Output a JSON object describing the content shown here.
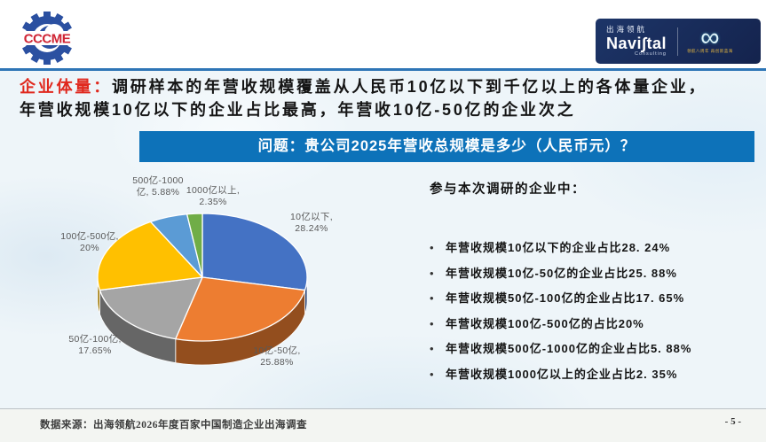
{
  "header": {
    "cccme_logo_text": "CCCME",
    "navistal": {
      "cn_name": "出海领航",
      "brand": "Navi∫tal",
      "sub": "Consulting",
      "infinity_icon": "∞",
      "anniversary_text": "领航八周年 再创新蓝海"
    }
  },
  "title": {
    "lead": "企业体量：",
    "line1_rest": "调研样本的年营收规模覆盖从人民币10亿以下到千亿以上的各体量企业，",
    "line2": "年营收规模10亿以下的企业占比最高，年营收10亿-50亿的企业次之"
  },
  "question_banner": "问题：贵公司2025年营收总规模是多少（人民币元）？",
  "chart_data": {
    "type": "pie",
    "style": "3d",
    "title": "问题：贵公司2025年营收总规模是多少（人民币元）？",
    "start_angle_deg": -90,
    "direction": "clockwise",
    "legend_position": "outside-labels",
    "slices": [
      {
        "label": "10亿以下",
        "value": 28.24,
        "display": "10亿以下,",
        "pct": "28.24%",
        "color": "#4472C4"
      },
      {
        "label": "10亿-50亿",
        "value": 25.88,
        "display": "10亿-50亿,",
        "pct": "25.88%",
        "color": "#ED7D31"
      },
      {
        "label": "50亿-100亿",
        "value": 17.65,
        "display": "50亿-100亿,",
        "pct": "17.65%",
        "color": "#A5A5A5"
      },
      {
        "label": "100亿-500亿",
        "value": 20,
        "display": "100亿-500亿,",
        "pct": "20%",
        "color": "#FFC000"
      },
      {
        "label": "500亿-1000亿",
        "value": 5.88,
        "display": "500亿-1000亿,",
        "pct": "5.88%",
        "color": "#5B9BD5"
      },
      {
        "label": "1000亿以上",
        "value": 2.35,
        "display": "1000亿以上,",
        "pct": "2.35%",
        "color": "#70AD47"
      }
    ]
  },
  "right_panel": {
    "heading": "参与本次调研的企业中：",
    "bullet_glyph": "•",
    "bullets": [
      "年营收规模10亿以下的企业占比28. 24%",
      "年营收规模10亿-50亿的企业占比25. 88%",
      "年营收规模50亿-100亿的企业占比17. 65%",
      "年营收规模100亿-500亿的占比20%",
      "年营收规模500亿-1000亿的企业占比5. 88%",
      "年营收规模1000亿以上的企业占比2. 35%"
    ]
  },
  "footer": {
    "source": "数据来源：出海领航2026年度百家中国制造企业出海调查",
    "page": "- 5 -"
  },
  "colors": {
    "banner_blue": "#0d72b9",
    "divider_blue": "#2e75b6",
    "title_red": "#e0281d",
    "navy_box": "#14234d"
  }
}
